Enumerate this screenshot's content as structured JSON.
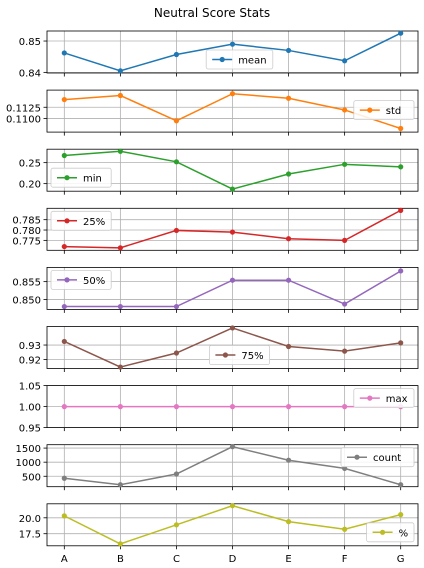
{
  "title": "Neutral Score Stats",
  "chart_data": [
    {
      "type": "line",
      "series": [
        {
          "name": "mean",
          "color": "#1f77b4",
          "values": [
            0.8462,
            0.8405,
            0.8457,
            0.849,
            0.847,
            0.8437,
            0.8525
          ]
        }
      ],
      "yticks": [
        0.84,
        0.85
      ],
      "ytick_labels": [
        "0.84",
        "0.85"
      ],
      "ylim": [
        0.8398,
        0.8532
      ],
      "legend": "lower center"
    },
    {
      "type": "line",
      "series": [
        {
          "name": "std",
          "color": "#ff7f0e",
          "values": [
            0.1142,
            0.1151,
            0.1095,
            0.1155,
            0.1145,
            0.1119,
            0.1078
          ]
        }
      ],
      "yticks": [
        0.11,
        0.1125
      ],
      "ytick_labels": [
        "0.1100",
        "0.1125"
      ],
      "ylim": [
        0.107,
        0.1163
      ],
      "legend": "center right"
    },
    {
      "type": "line",
      "series": [
        {
          "name": "min",
          "color": "#2ca02c",
          "values": [
            0.267,
            0.277,
            0.252,
            0.187,
            0.223,
            0.246,
            0.24
          ]
        }
      ],
      "yticks": [
        0.2,
        0.25
      ],
      "ytick_labels": [
        "0.20",
        "0.25"
      ],
      "ylim": [
        0.182,
        0.282
      ],
      "legend": "lower left"
    },
    {
      "type": "line",
      "series": [
        {
          "name": "25%",
          "color": "#d62728",
          "values": [
            0.772,
            0.7714,
            0.7798,
            0.779,
            0.7758,
            0.775,
            0.7895
          ]
        }
      ],
      "yticks": [
        0.775,
        0.78,
        0.785
      ],
      "ytick_labels": [
        "0.775",
        "0.780",
        "0.785"
      ],
      "ylim": [
        0.7702,
        0.7905
      ],
      "legend": "upper left"
    },
    {
      "type": "line",
      "series": [
        {
          "name": "50%",
          "color": "#9467bd",
          "values": [
            0.848,
            0.848,
            0.848,
            0.8554,
            0.8554,
            0.8487,
            0.858
          ]
        }
      ],
      "yticks": [
        0.85,
        0.855
      ],
      "ytick_labels": [
        "0.850",
        "0.855"
      ],
      "ylim": [
        0.8472,
        0.859
      ],
      "legend": "upper left"
    },
    {
      "type": "line",
      "series": [
        {
          "name": "75%",
          "color": "#8c564b",
          "values": [
            0.9325,
            0.9148,
            0.9245,
            0.9418,
            0.929,
            0.9258,
            0.9315
          ]
        }
      ],
      "yticks": [
        0.92,
        0.93
      ],
      "ytick_labels": [
        "0.92",
        "0.93"
      ],
      "ylim": [
        0.9138,
        0.9428
      ],
      "legend": "lower center"
    },
    {
      "type": "line",
      "series": [
        {
          "name": "max",
          "color": "#e377c2",
          "values": [
            1.0,
            1.0,
            1.0,
            1.0,
            1.0,
            1.0,
            1.0
          ]
        }
      ],
      "yticks": [
        0.95,
        1.0,
        1.05
      ],
      "ytick_labels": [
        "0.95",
        "1.00",
        "1.05"
      ],
      "ylim": [
        0.95,
        1.05
      ],
      "legend": "upper right"
    },
    {
      "type": "line",
      "series": [
        {
          "name": "count",
          "color": "#7f7f7f",
          "values": [
            430,
            200,
            580,
            1550,
            1070,
            780,
            200
          ]
        }
      ],
      "yticks": [
        500,
        1000,
        1500
      ],
      "ytick_labels": [
        "500",
        "1000",
        "1500"
      ],
      "ylim": [
        130,
        1620
      ],
      "legend": "upper right"
    },
    {
      "type": "line",
      "series": [
        {
          "name": "%",
          "color": "#bcbd22",
          "values": [
            20.3,
            15.9,
            18.9,
            21.9,
            19.4,
            18.2,
            20.5
          ]
        }
      ],
      "yticks": [
        17.5,
        20.0
      ],
      "ytick_labels": [
        "17.5",
        "20.0"
      ],
      "ylim": [
        15.6,
        22.2
      ],
      "legend": "lower right"
    }
  ],
  "categories": [
    "A",
    "B",
    "C",
    "D",
    "E",
    "F",
    "G"
  ]
}
